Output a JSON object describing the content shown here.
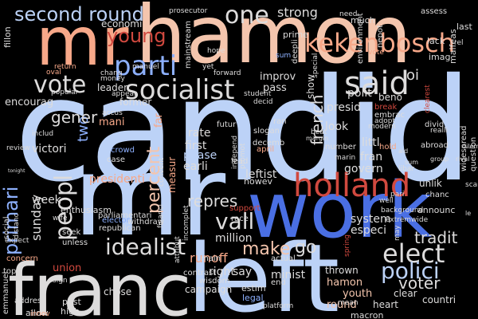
{
  "colors": {
    "background": "#000000",
    "blue_light": "#bcd2f7",
    "blue_mid": "#8db0fe",
    "blue_dark": "#4a6fe3",
    "pale": "#dddcdc",
    "peach": "#f4c5ad",
    "salmon": "#f7a889",
    "red": "#d1493f",
    "dark_red": "#b40426"
  },
  "words": [
    "candid",
    "mr",
    "hamon",
    "work",
    "left",
    "franc",
    "mr",
    "holland",
    "said",
    "parti",
    "socialist",
    "kekenbosch",
    "vote",
    "second round",
    "one",
    "young",
    "elect",
    "polici",
    "idealist",
    "percent",
    "peopl",
    "vall",
    "go",
    "primari",
    "voter",
    "tradit",
    "two",
    "gener",
    "french",
    "make",
    "repres",
    "sunday",
    "presidenti",
    "runoff",
    "million",
    "strong",
    "oi",
    "rate",
    "first",
    "phase",
    "earli",
    "leftist",
    "system",
    "especi",
    "polit",
    "look",
    "littl",
    "fran",
    "govern",
    "presid",
    "show",
    "beno",
    "pass",
    "improv",
    "former",
    "manuel",
    "leader",
    "economi",
    "fillon",
    "encourag",
    "victori",
    "week",
    "union",
    "right",
    "say",
    "minist",
    "youth",
    "hamon",
    "round",
    "thrown",
    "clear",
    "countri",
    "heart",
    "macron",
    "chose",
    "past",
    "high",
    "allow",
    "emmanuel",
    "campaign",
    "estim",
    "legal",
    "mainstream",
    "prime",
    "much",
    "lack",
    "last",
    "malfeas",
    "nepot",
    "environment",
    "imag",
    "need",
    "assess",
    "realli",
    "mani",
    "far",
    "measur",
    "futur",
    "decemb",
    "april",
    "slogan",
    "ran",
    "independ",
    "race",
    "support",
    "howev",
    "unlik",
    "announc",
    "chanc",
    "libar",
    "divid",
    "modern",
    "question",
    "widespread",
    "deepli",
    "sum",
    "special",
    "crowd",
    "case",
    "appear",
    "convent",
    "lead",
    "actual",
    "main",
    "wisdom",
    "contrast",
    "end",
    "top",
    "concern",
    "address",
    "social",
    "expect",
    "distanc",
    "enthusiasm",
    "seek",
    "unless",
    "elector",
    "republican",
    "parliamentari",
    "withdraw",
    "financi",
    "attribut",
    "incomplet",
    "promot",
    "embrac",
    "break",
    "adopt",
    "abroad",
    "number",
    "hold",
    "may",
    "spring",
    "scandal",
    "oval",
    "return",
    "popular",
    "accus",
    "chang",
    "money",
    "includ",
    "review",
    "decid",
    "wife",
    "innov",
    "sign",
    "platform",
    "beat",
    "margin",
    "marin",
    "group",
    "tonight",
    "mean",
    "yet",
    "forward",
    "hope",
    "student",
    "clearest",
    "well",
    "background",
    "extremwide",
    "pari",
    "prosecutor",
    "vote",
    "rel",
    "rival",
    "dilemma",
    "sum",
    "le",
    "aid",
    "late",
    "state",
    "entir",
    "opportun",
    "victori"
  ]
}
